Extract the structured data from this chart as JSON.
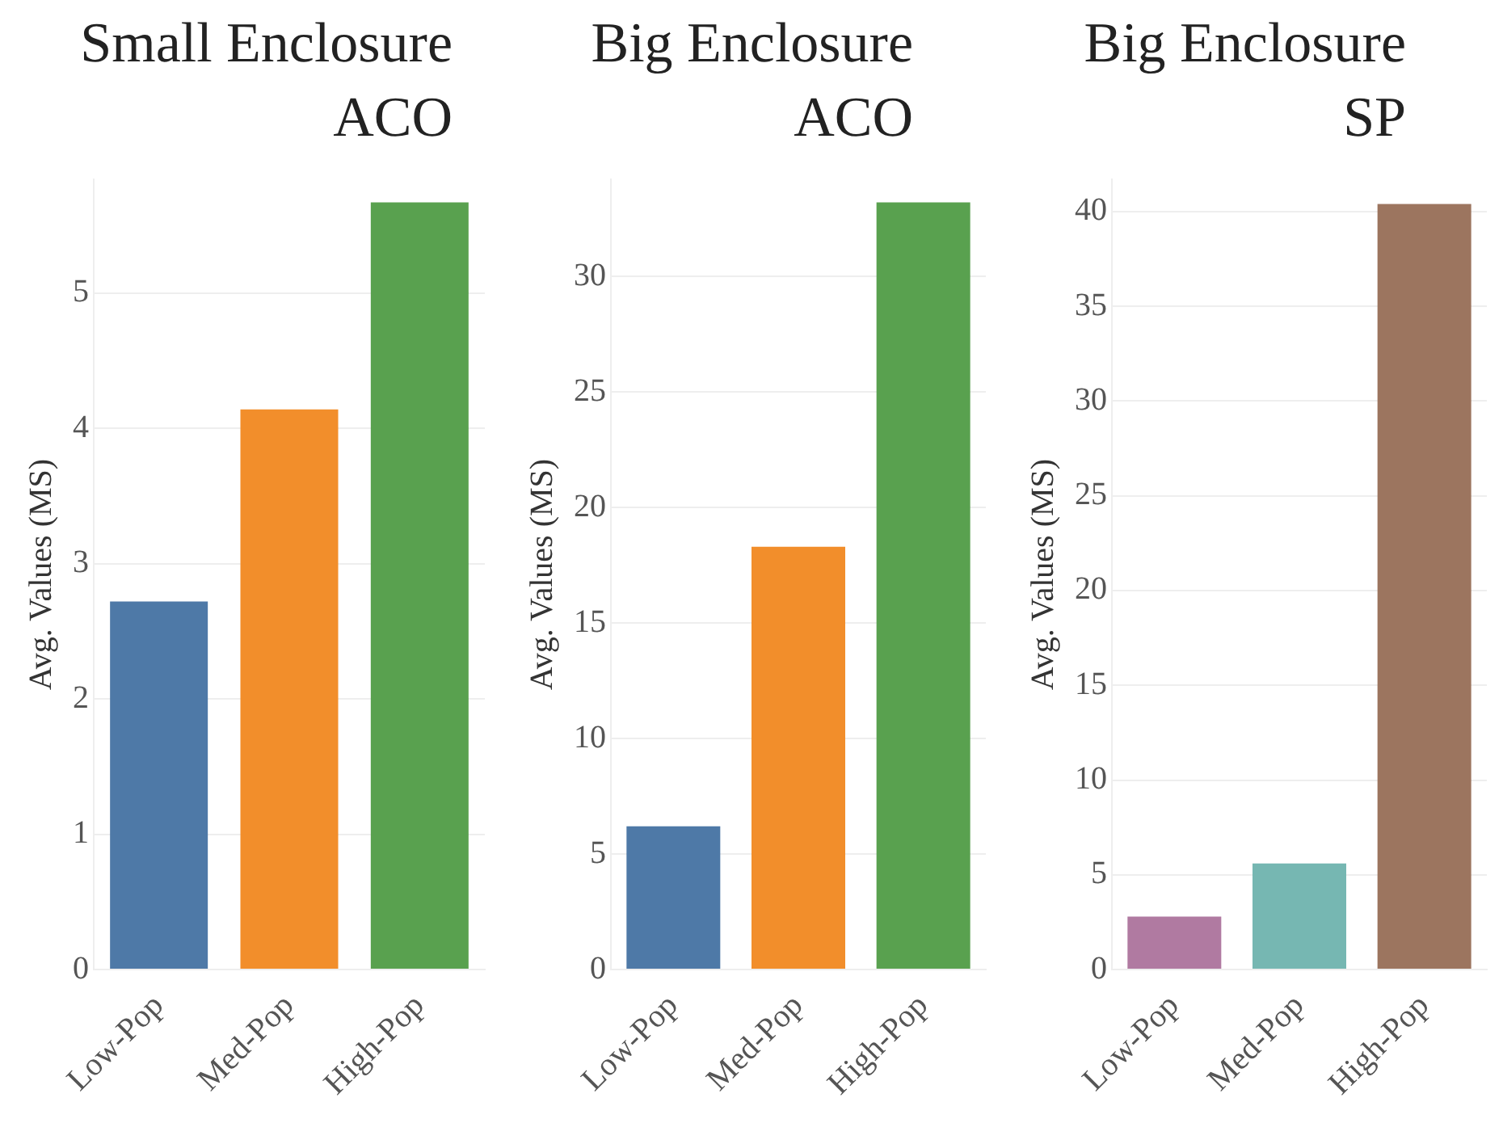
{
  "chart_data": [
    {
      "type": "bar",
      "title": "Small Enclosure ACO",
      "ylabel": "Avg. Values (MS)",
      "categories": [
        "Low-Pop",
        "Med-Pop",
        "High-Pop"
      ],
      "values": [
        2.72,
        4.14,
        5.67
      ],
      "colors": [
        "#4e79a7",
        "#f28e2b",
        "#59a14f"
      ],
      "ylim": [
        0,
        5.84
      ],
      "yticks": [
        0,
        1,
        2,
        3,
        4,
        5
      ],
      "grid": "y",
      "legend": false
    },
    {
      "type": "bar",
      "title": "Big Enclosure ACO",
      "ylabel": "Avg. Values (MS)",
      "categories": [
        "Low-Pop",
        "Med-Pop",
        "High-Pop"
      ],
      "values": [
        6.2,
        18.3,
        33.2
      ],
      "colors": [
        "#4e79a7",
        "#f28e2b",
        "#59a14f"
      ],
      "ylim": [
        0,
        34.2
      ],
      "yticks": [
        0,
        5,
        10,
        15,
        20,
        25,
        30
      ],
      "grid": "y",
      "legend": false
    },
    {
      "type": "bar",
      "title": "Big Enclosure SP",
      "ylabel": "Avg. Values (MS)",
      "categories": [
        "Low-Pop",
        "Med-Pop",
        "High-Pop"
      ],
      "values": [
        2.8,
        5.6,
        40.4
      ],
      "colors": [
        "#b07aa1",
        "#76b7b2",
        "#9c755f"
      ],
      "ylim": [
        0,
        41.7
      ],
      "yticks": [
        0,
        5,
        10,
        15,
        20,
        25,
        30,
        35,
        40
      ],
      "grid": "y",
      "legend": false
    }
  ]
}
